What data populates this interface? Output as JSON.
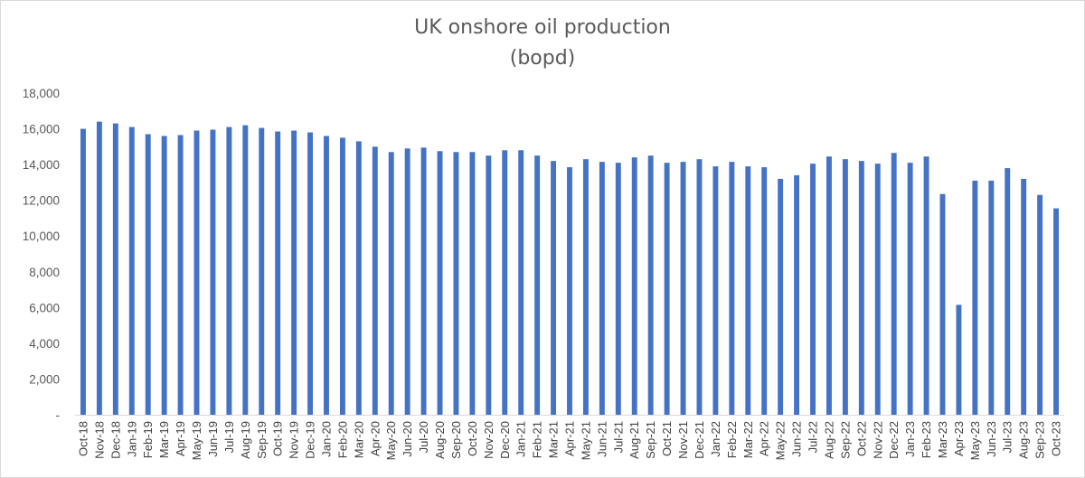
{
  "chart_data": {
    "type": "bar",
    "title": "UK onshore oil production",
    "subtitle": "(bopd)",
    "xlabel": "",
    "ylabel": "",
    "ylim": [
      0,
      18000
    ],
    "yticks": [
      "-",
      "2,000",
      "4,000",
      "6,000",
      "8,000",
      "10,000",
      "12,000",
      "14,000",
      "16,000",
      "18,000"
    ],
    "ytick_values": [
      0,
      2000,
      4000,
      6000,
      8000,
      10000,
      12000,
      14000,
      16000,
      18000
    ],
    "bar_color": "#4472c4",
    "grid": false,
    "legend": "none",
    "categories": [
      "Oct-18",
      "Nov-18",
      "Dec-18",
      "Jan-19",
      "Feb-19",
      "Mar-19",
      "Apr-19",
      "May-19",
      "Jun-19",
      "Jul-19",
      "Aug-19",
      "Sep-19",
      "Oct-19",
      "Nov-19",
      "Dec-19",
      "Jan-20",
      "Feb-20",
      "Mar-20",
      "Apr-20",
      "May-20",
      "Jun-20",
      "Jul-20",
      "Aug-20",
      "Sep-20",
      "Oct-20",
      "Nov-20",
      "Dec-20",
      "Jan-21",
      "Feb-21",
      "Mar-21",
      "Apr-21",
      "May-21",
      "Jun-21",
      "Jul-21",
      "Aug-21",
      "Sep-21",
      "Oct-21",
      "Nov-21",
      "Dec-21",
      "Jan-22",
      "Feb-22",
      "Mar-22",
      "Apr-22",
      "May-22",
      "Jun-22",
      "Jul-22",
      "Aug-22",
      "Sep-22",
      "Oct-22",
      "Nov-22",
      "Dec-22",
      "Jan-23",
      "Feb-23",
      "Mar-23",
      "Apr-23",
      "May-23",
      "Jun-23",
      "Jul-23",
      "Aug-23",
      "Sep-23",
      "Oct-23"
    ],
    "values": [
      16000,
      16400,
      16300,
      16100,
      15700,
      15600,
      15650,
      15900,
      15950,
      16100,
      16200,
      16050,
      15850,
      15900,
      15800,
      15600,
      15500,
      15300,
      15000,
      14700,
      14900,
      14950,
      14750,
      14700,
      14700,
      14500,
      14800,
      14800,
      14500,
      14200,
      13850,
      14300,
      14150,
      14100,
      14400,
      14500,
      14100,
      14150,
      14300,
      13900,
      14150,
      13900,
      13850,
      13200,
      13400,
      14050,
      14450,
      14300,
      14200,
      14050,
      14650,
      14100,
      14450,
      12350,
      6150,
      13100,
      13100,
      13800,
      13200,
      12300,
      11550
    ]
  }
}
